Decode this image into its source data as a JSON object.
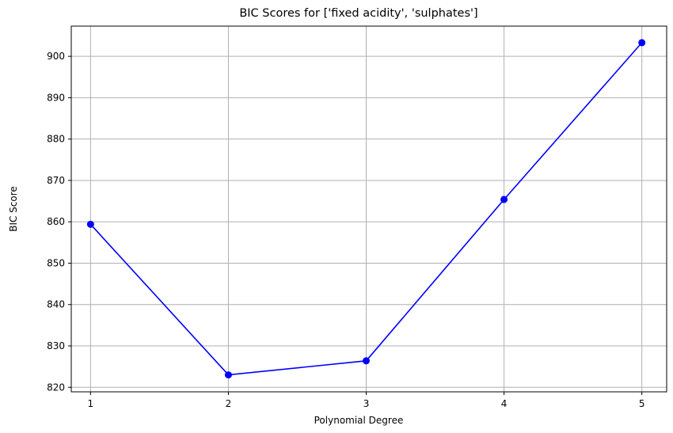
{
  "chart_data": {
    "type": "line",
    "title": "BIC Scores for ['fixed acidity', 'sulphates']",
    "xlabel": "Polynomial Degree",
    "ylabel": "BIC Score",
    "x": [
      1,
      2,
      3,
      4,
      5
    ],
    "series": [
      {
        "values": [
          859.4,
          823.0,
          826.4,
          865.4,
          903.3
        ]
      }
    ],
    "xticks": [
      "1",
      "2",
      "3",
      "4",
      "5"
    ],
    "yticks": [
      "820",
      "830",
      "840",
      "850",
      "860",
      "870",
      "880",
      "890",
      "900"
    ],
    "xlim": [
      0.86,
      5.18
    ],
    "ylim": [
      818.9,
      907.3
    ],
    "grid": true,
    "colors": {
      "line": "#0000ff",
      "grid": "#b0b0b0",
      "axes": "#000000"
    }
  }
}
